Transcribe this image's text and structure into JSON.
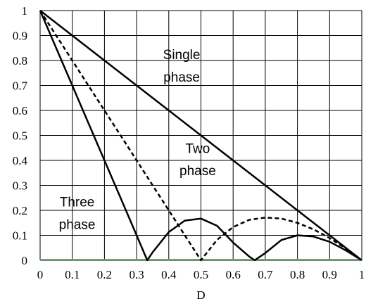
{
  "chart_data": {
    "type": "line",
    "title": "",
    "xlabel": "D",
    "ylabel": "",
    "xlim": [
      0,
      1
    ],
    "ylim": [
      0,
      1
    ],
    "grid": true,
    "x_ticks": [
      "0",
      "0.1",
      "0.2",
      "0.3",
      "0.4",
      "0.5",
      "0.6",
      "0.7",
      "0.8",
      "0.9",
      "1"
    ],
    "y_ticks": [
      "0",
      "0.1",
      "0.2",
      "0.3",
      "0.4",
      "0.5",
      "0.6",
      "0.7",
      "0.8",
      "0.9",
      "1"
    ],
    "annotations": [
      {
        "lines": [
          "Single",
          "phase"
        ],
        "near_series": "single"
      },
      {
        "lines": [
          "Two",
          "phase"
        ],
        "near_series": "two"
      },
      {
        "lines": [
          "Three",
          "phase"
        ],
        "near_series": "three"
      }
    ],
    "series": [
      {
        "id": "single",
        "style": "solid",
        "x": [
          0,
          0.1,
          0.2,
          0.3,
          0.4,
          0.5,
          0.6,
          0.7,
          0.8,
          0.9,
          1
        ],
        "y": [
          1,
          0.9,
          0.8,
          0.7,
          0.6,
          0.5,
          0.4,
          0.3,
          0.2,
          0.1,
          0
        ]
      },
      {
        "id": "two",
        "style": "dashed",
        "x": [
          0,
          0.05,
          0.1,
          0.15,
          0.2,
          0.25,
          0.3,
          0.35,
          0.4,
          0.45,
          0.5,
          0.55,
          0.6,
          0.65,
          0.7,
          0.75,
          0.8,
          0.85,
          0.9,
          0.95,
          1
        ],
        "y": [
          1,
          0.9,
          0.8,
          0.7,
          0.6,
          0.5,
          0.4,
          0.3,
          0.2,
          0.1,
          0,
          0.082,
          0.133,
          0.162,
          0.171,
          0.167,
          0.15,
          0.124,
          0.089,
          0.047,
          0
        ]
      },
      {
        "id": "three",
        "style": "solid",
        "x": [
          0,
          0.05,
          0.1,
          0.15,
          0.2,
          0.25,
          0.3,
          0.333,
          0.35,
          0.4,
          0.45,
          0.5,
          0.55,
          0.6,
          0.65,
          0.667,
          0.7,
          0.75,
          0.8,
          0.85,
          0.9,
          0.95,
          1
        ],
        "y": [
          1,
          0.85,
          0.7,
          0.55,
          0.4,
          0.25,
          0.1,
          0,
          0.032,
          0.113,
          0.159,
          0.167,
          0.138,
          0.071,
          0.015,
          0,
          0.029,
          0.081,
          0.1,
          0.095,
          0.074,
          0.04,
          0
        ]
      }
    ]
  }
}
